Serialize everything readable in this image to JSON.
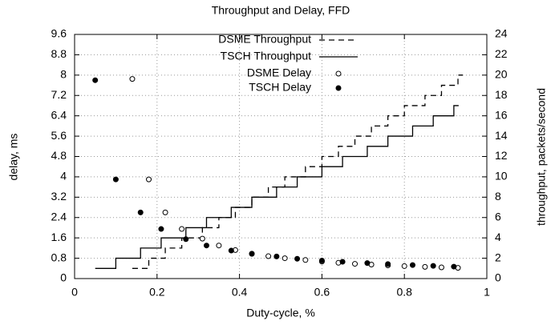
{
  "chart_data": {
    "type": "line",
    "title": "Throughput and Delay, FFD",
    "x_label": "Duty-cycle, %",
    "y_label": "delay, ms",
    "y2_label": "throughput, packets/second",
    "xlim": [
      0,
      1
    ],
    "xticks": [
      0,
      0.2,
      0.4,
      0.6,
      0.8,
      1
    ],
    "ylim": [
      0,
      9.6
    ],
    "yticks": [
      0,
      0.8,
      1.6,
      2.4,
      3.2,
      4,
      4.8,
      5.6,
      6.4,
      7.2,
      8,
      8.8,
      9.6
    ],
    "y2lim": [
      0,
      24
    ],
    "y2ticks": [
      0,
      2,
      4,
      6,
      8,
      10,
      12,
      14,
      16,
      18,
      20,
      22,
      24
    ],
    "grid": true,
    "legend": "top right",
    "series": [
      {
        "name": "DSME Throughput",
        "style": "dashed-steps",
        "color": "#000000",
        "axis": "y2",
        "x": [
          0.14,
          0.18,
          0.22,
          0.26,
          0.31,
          0.35,
          0.39,
          0.43,
          0.47,
          0.51,
          0.56,
          0.6,
          0.64,
          0.68,
          0.72,
          0.76,
          0.8,
          0.85,
          0.89,
          0.93
        ],
        "values": [
          1,
          2,
          3,
          4,
          5,
          6,
          7,
          8,
          9,
          10,
          11,
          12,
          13,
          14,
          15,
          16,
          17,
          18,
          19,
          20
        ]
      },
      {
        "name": "TSCH Throughput",
        "style": "solid-steps",
        "color": "#000000",
        "axis": "y2",
        "x": [
          0.05,
          0.1,
          0.16,
          0.21,
          0.27,
          0.32,
          0.38,
          0.43,
          0.49,
          0.54,
          0.6,
          0.65,
          0.71,
          0.76,
          0.82,
          0.87,
          0.92
        ],
        "values": [
          1,
          2,
          3,
          4,
          5,
          6,
          7,
          8,
          9,
          10,
          11,
          12,
          13,
          14,
          15,
          16,
          17
        ]
      },
      {
        "name": "DSME Delay",
        "style": "open-circles",
        "color": "#000000",
        "x": [
          0.14,
          0.18,
          0.22,
          0.26,
          0.31,
          0.35,
          0.39,
          0.43,
          0.47,
          0.51,
          0.56,
          0.6,
          0.64,
          0.68,
          0.72,
          0.76,
          0.8,
          0.85,
          0.89,
          0.93
        ],
        "values": [
          7.85,
          3.9,
          2.6,
          1.95,
          1.57,
          1.3,
          1.12,
          0.98,
          0.88,
          0.8,
          0.73,
          0.67,
          0.62,
          0.58,
          0.55,
          0.52,
          0.49,
          0.46,
          0.44,
          0.42
        ]
      },
      {
        "name": "TSCH Delay",
        "style": "filled-circles",
        "color": "#000000",
        "x": [
          0.05,
          0.1,
          0.16,
          0.21,
          0.27,
          0.32,
          0.38,
          0.43,
          0.49,
          0.54,
          0.6,
          0.65,
          0.71,
          0.76,
          0.82,
          0.87,
          0.92
        ],
        "values": [
          7.8,
          3.9,
          2.6,
          1.95,
          1.55,
          1.3,
          1.1,
          0.97,
          0.87,
          0.78,
          0.71,
          0.66,
          0.61,
          0.57,
          0.53,
          0.5,
          0.47
        ]
      }
    ]
  }
}
